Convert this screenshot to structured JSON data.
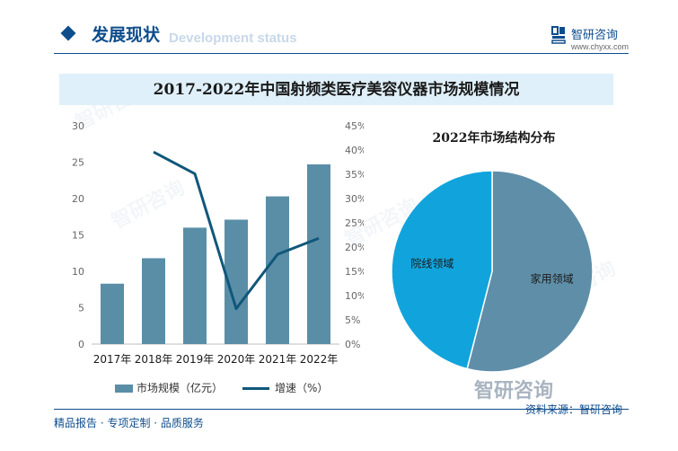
{
  "header": {
    "title": "发展现状",
    "subtitle_en": "Development status",
    "logo_name": "智研咨询",
    "logo_url": "www.chyxx.com"
  },
  "banner_title": "2017-2022年中国射频类医疗美容仪器市场规模情况",
  "chart_data": [
    {
      "type": "bar",
      "title": "",
      "categories": [
        "2017年",
        "2018年",
        "2019年",
        "2020年",
        "2021年",
        "2022年"
      ],
      "series": [
        {
          "name": "市场规模（亿元）",
          "type": "bar",
          "axis": "left",
          "values": [
            8.3,
            11.8,
            16.0,
            17.1,
            20.3,
            24.7
          ],
          "color": "#5a8ea7"
        },
        {
          "name": "增速（%）",
          "type": "line",
          "axis": "right",
          "values": [
            null,
            39.6,
            35.1,
            7.3,
            18.5,
            21.8
          ],
          "color": "#10577a"
        }
      ],
      "ylim_left": [
        0,
        30
      ],
      "yticks_left": [
        "0",
        "5",
        "10",
        "15",
        "20",
        "25",
        "30"
      ],
      "ylim_right": [
        0,
        45
      ],
      "yticks_right": [
        "0%",
        "5%",
        "10%",
        "15%",
        "20%",
        "25%",
        "30%",
        "35%",
        "40%",
        "45%"
      ],
      "grid": false,
      "legend": "bottom"
    },
    {
      "type": "pie",
      "title": "2022年市场结构分布",
      "slices": [
        {
          "label": "家用领域",
          "value": 54,
          "color": "#5f8fa8"
        },
        {
          "label": "院线领域",
          "value": 46,
          "color": "#11a4dc"
        }
      ]
    }
  ],
  "footer": {
    "left": "精品报告 · 专项定制 · 品质服务",
    "source": "资料来源：智研咨询",
    "watermark": "智研咨询"
  }
}
